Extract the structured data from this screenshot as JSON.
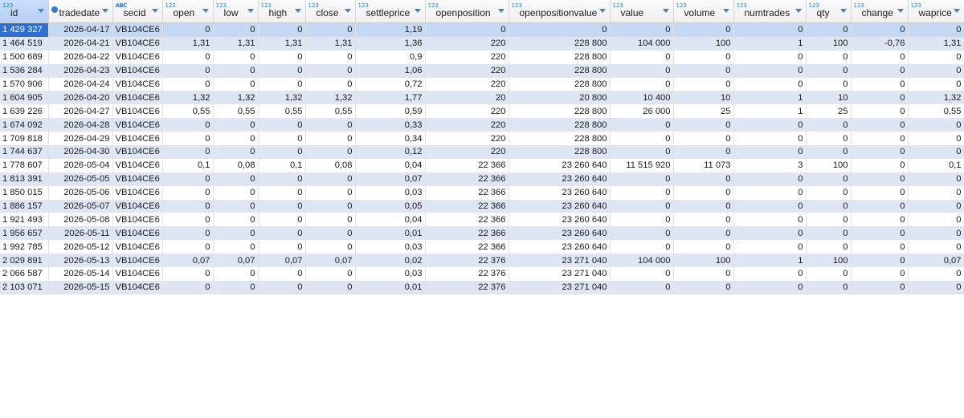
{
  "columns": [
    {
      "key": "id",
      "label": "id",
      "type": "123"
    },
    {
      "key": "tradedate",
      "label": "tradedate",
      "type": "date"
    },
    {
      "key": "secid",
      "label": "secid",
      "type": "abc"
    },
    {
      "key": "open",
      "label": "open",
      "type": "123"
    },
    {
      "key": "low",
      "label": "low",
      "type": "123"
    },
    {
      "key": "high",
      "label": "high",
      "type": "123"
    },
    {
      "key": "close",
      "label": "close",
      "type": "123"
    },
    {
      "key": "settleprice",
      "label": "settleprice",
      "type": "123"
    },
    {
      "key": "openposition",
      "label": "openposition",
      "type": "123"
    },
    {
      "key": "openpositionvalue",
      "label": "openpositionvalue",
      "type": "123"
    },
    {
      "key": "value",
      "label": "value",
      "type": "123"
    },
    {
      "key": "volume",
      "label": "volume",
      "type": "123"
    },
    {
      "key": "numtrades",
      "label": "numtrades",
      "type": "123"
    },
    {
      "key": "qty",
      "label": "qty",
      "type": "123"
    },
    {
      "key": "change",
      "label": "change",
      "type": "123"
    },
    {
      "key": "waprice",
      "label": "waprice",
      "type": "123"
    }
  ],
  "rows": [
    [
      "1 429 327",
      "2026-04-17",
      "VB104CE6",
      "0",
      "0",
      "0",
      "0",
      "1,19",
      "0",
      "0",
      "0",
      "0",
      "0",
      "0",
      "0",
      "0"
    ],
    [
      "1 464 519",
      "2026-04-21",
      "VB104CE6",
      "1,31",
      "1,31",
      "1,31",
      "1,31",
      "1,36",
      "220",
      "228 800",
      "104 000",
      "100",
      "1",
      "100",
      "-0,76",
      "1,31"
    ],
    [
      "1 500 689",
      "2026-04-22",
      "VB104CE6",
      "0",
      "0",
      "0",
      "0",
      "0,9",
      "220",
      "228 800",
      "0",
      "0",
      "0",
      "0",
      "0",
      "0"
    ],
    [
      "1 536 284",
      "2026-04-23",
      "VB104CE6",
      "0",
      "0",
      "0",
      "0",
      "1,06",
      "220",
      "228 800",
      "0",
      "0",
      "0",
      "0",
      "0",
      "0"
    ],
    [
      "1 570 906",
      "2026-04-24",
      "VB104CE6",
      "0",
      "0",
      "0",
      "0",
      "0,72",
      "220",
      "228 800",
      "0",
      "0",
      "0",
      "0",
      "0",
      "0"
    ],
    [
      "1 604 905",
      "2026-04-20",
      "VB104CE6",
      "1,32",
      "1,32",
      "1,32",
      "1,32",
      "1,77",
      "20",
      "20 800",
      "10 400",
      "10",
      "1",
      "10",
      "0",
      "1,32"
    ],
    [
      "1 639 226",
      "2026-04-27",
      "VB104CE6",
      "0,55",
      "0,55",
      "0,55",
      "0,55",
      "0,59",
      "220",
      "228 800",
      "26 000",
      "25",
      "1",
      "25",
      "0",
      "0,55"
    ],
    [
      "1 674 092",
      "2026-04-28",
      "VB104CE6",
      "0",
      "0",
      "0",
      "0",
      "0,33",
      "220",
      "228 800",
      "0",
      "0",
      "0",
      "0",
      "0",
      "0"
    ],
    [
      "1 709 818",
      "2026-04-29",
      "VB104CE6",
      "0",
      "0",
      "0",
      "0",
      "0,34",
      "220",
      "228 800",
      "0",
      "0",
      "0",
      "0",
      "0",
      "0"
    ],
    [
      "1 744 637",
      "2026-04-30",
      "VB104CE6",
      "0",
      "0",
      "0",
      "0",
      "0,12",
      "220",
      "228 800",
      "0",
      "0",
      "0",
      "0",
      "0",
      "0"
    ],
    [
      "1 778 607",
      "2026-05-04",
      "VB104CE6",
      "0,1",
      "0,08",
      "0,1",
      "0,08",
      "0,04",
      "22 366",
      "23 260 640",
      "11 515 920",
      "11 073",
      "3",
      "100",
      "0",
      "0,1"
    ],
    [
      "1 813 391",
      "2026-05-05",
      "VB104CE6",
      "0",
      "0",
      "0",
      "0",
      "0,07",
      "22 366",
      "23 260 640",
      "0",
      "0",
      "0",
      "0",
      "0",
      "0"
    ],
    [
      "1 850 015",
      "2026-05-06",
      "VB104CE6",
      "0",
      "0",
      "0",
      "0",
      "0,03",
      "22 366",
      "23 260 640",
      "0",
      "0",
      "0",
      "0",
      "0",
      "0"
    ],
    [
      "1 886 157",
      "2026-05-07",
      "VB104CE6",
      "0",
      "0",
      "0",
      "0",
      "0,05",
      "22 366",
      "23 260 640",
      "0",
      "0",
      "0",
      "0",
      "0",
      "0"
    ],
    [
      "1 921 493",
      "2026-05-08",
      "VB104CE6",
      "0",
      "0",
      "0",
      "0",
      "0,04",
      "22 366",
      "23 260 640",
      "0",
      "0",
      "0",
      "0",
      "0",
      "0"
    ],
    [
      "1 956 657",
      "2026-05-11",
      "VB104CE6",
      "0",
      "0",
      "0",
      "0",
      "0,01",
      "22 366",
      "23 260 640",
      "0",
      "0",
      "0",
      "0",
      "0",
      "0"
    ],
    [
      "1 992 785",
      "2026-05-12",
      "VB104CE6",
      "0",
      "0",
      "0",
      "0",
      "0,03",
      "22 366",
      "23 260 640",
      "0",
      "0",
      "0",
      "0",
      "0",
      "0"
    ],
    [
      "2 029 891",
      "2026-05-13",
      "VB104CE6",
      "0,07",
      "0,07",
      "0,07",
      "0,07",
      "0,02",
      "22 376",
      "23 271 040",
      "104 000",
      "100",
      "1",
      "100",
      "0",
      "0,07"
    ],
    [
      "2 066 587",
      "2026-05-14",
      "VB104CE6",
      "0",
      "0",
      "0",
      "0",
      "0,03",
      "22 376",
      "23 271 040",
      "0",
      "0",
      "0",
      "0",
      "0",
      "0"
    ],
    [
      "2 103 071",
      "2026-05-15",
      "VB104CE6",
      "0",
      "0",
      "0",
      "0",
      "0,01",
      "22 376",
      "23 271 040",
      "0",
      "0",
      "0",
      "0",
      "0",
      "0"
    ]
  ],
  "selected_row": 0
}
